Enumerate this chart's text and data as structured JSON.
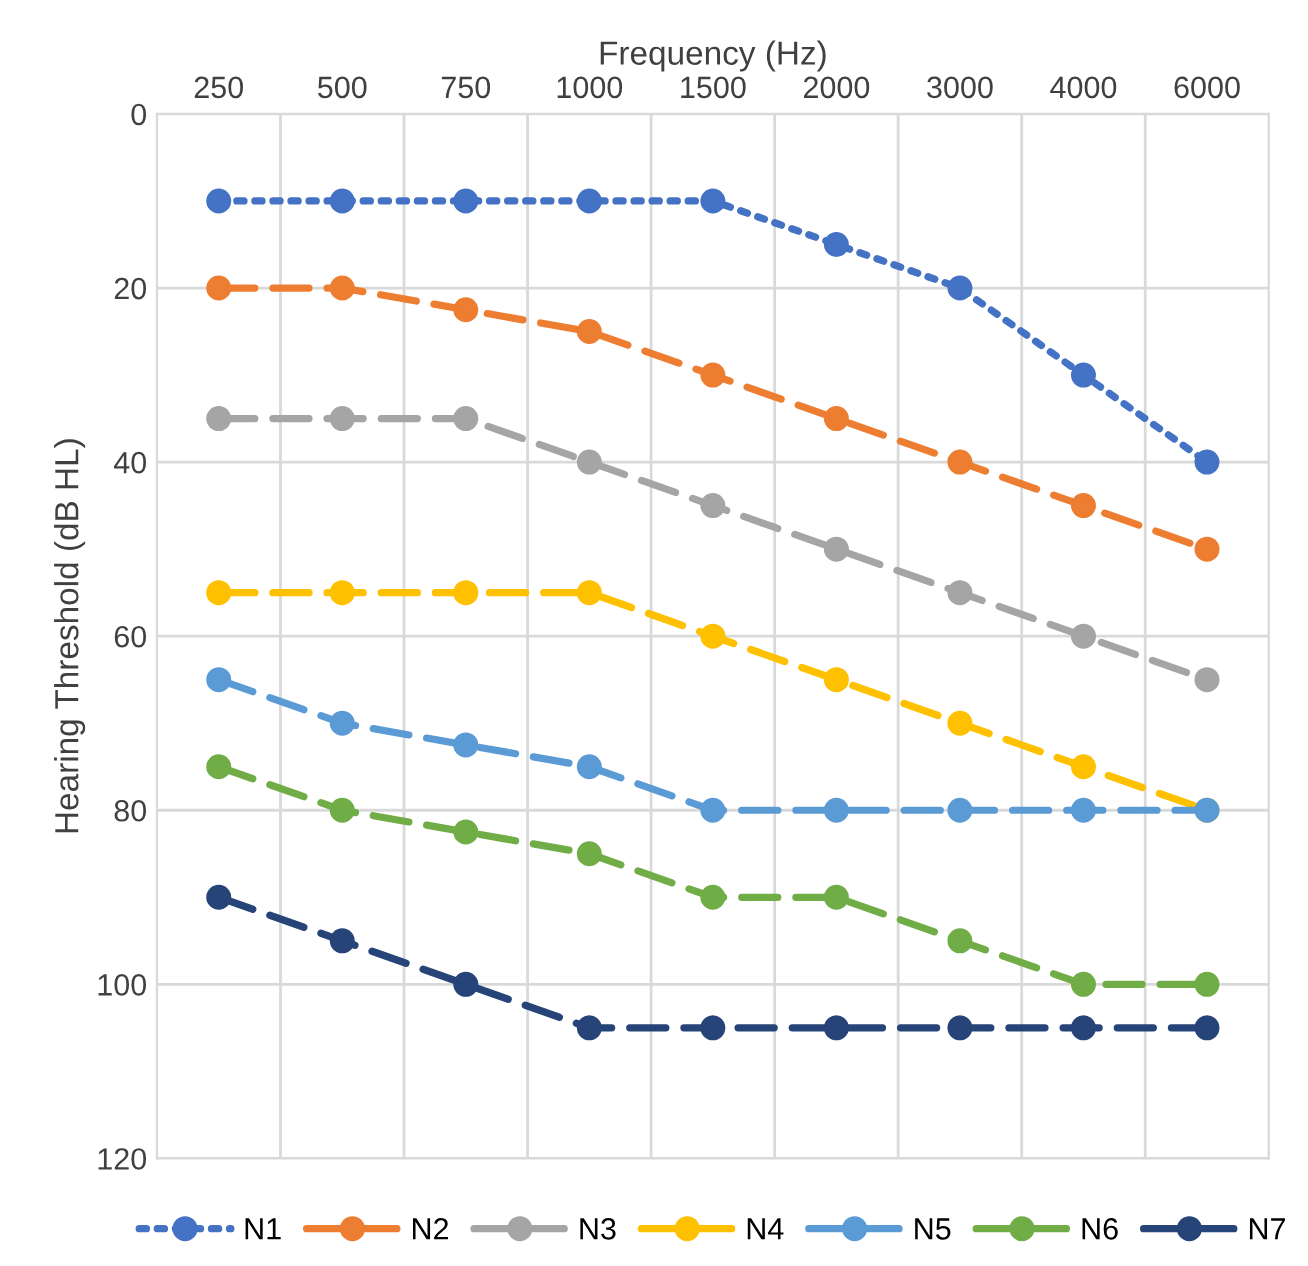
{
  "chart_data": {
    "type": "line",
    "xlabel": "Frequency (Hz)",
    "ylabel": "Hearing Threshold (dB HL)",
    "categories": [
      "250",
      "500",
      "750",
      "1000",
      "1500",
      "2000",
      "3000",
      "4000",
      "6000"
    ],
    "ylim": [
      120,
      0
    ],
    "yticks": [
      0,
      20,
      40,
      60,
      80,
      100,
      120
    ],
    "grid": true,
    "legend": "bottom",
    "marker": "circle",
    "series": [
      {
        "name": "N1",
        "color": "#4472c4",
        "line_style": "dotted",
        "values": [
          10,
          10,
          10,
          10,
          10,
          15,
          20,
          30,
          40
        ]
      },
      {
        "name": "N2",
        "color": "#ed7d31",
        "line_style": "dashed",
        "values": [
          20,
          20,
          22.5,
          25,
          30,
          35,
          40,
          45,
          50
        ]
      },
      {
        "name": "N3",
        "color": "#a5a5a5",
        "line_style": "dashed",
        "values": [
          35,
          35,
          35,
          40,
          45,
          50,
          55,
          60,
          65
        ]
      },
      {
        "name": "N4",
        "color": "#ffc000",
        "line_style": "dashed",
        "values": [
          55,
          55,
          55,
          55,
          60,
          65,
          70,
          75,
          80
        ]
      },
      {
        "name": "N5",
        "color": "#5b9bd5",
        "line_style": "dashed",
        "values": [
          65,
          70,
          72.5,
          75,
          80,
          80,
          80,
          80,
          80
        ]
      },
      {
        "name": "N6",
        "color": "#70ad47",
        "line_style": "dashed",
        "values": [
          75,
          80,
          82.5,
          85,
          90,
          90,
          95,
          100,
          100
        ]
      },
      {
        "name": "N7",
        "color": "#264478",
        "line_style": "dashed",
        "values": [
          90,
          95,
          100,
          105,
          105,
          105,
          105,
          105,
          105
        ]
      }
    ]
  }
}
